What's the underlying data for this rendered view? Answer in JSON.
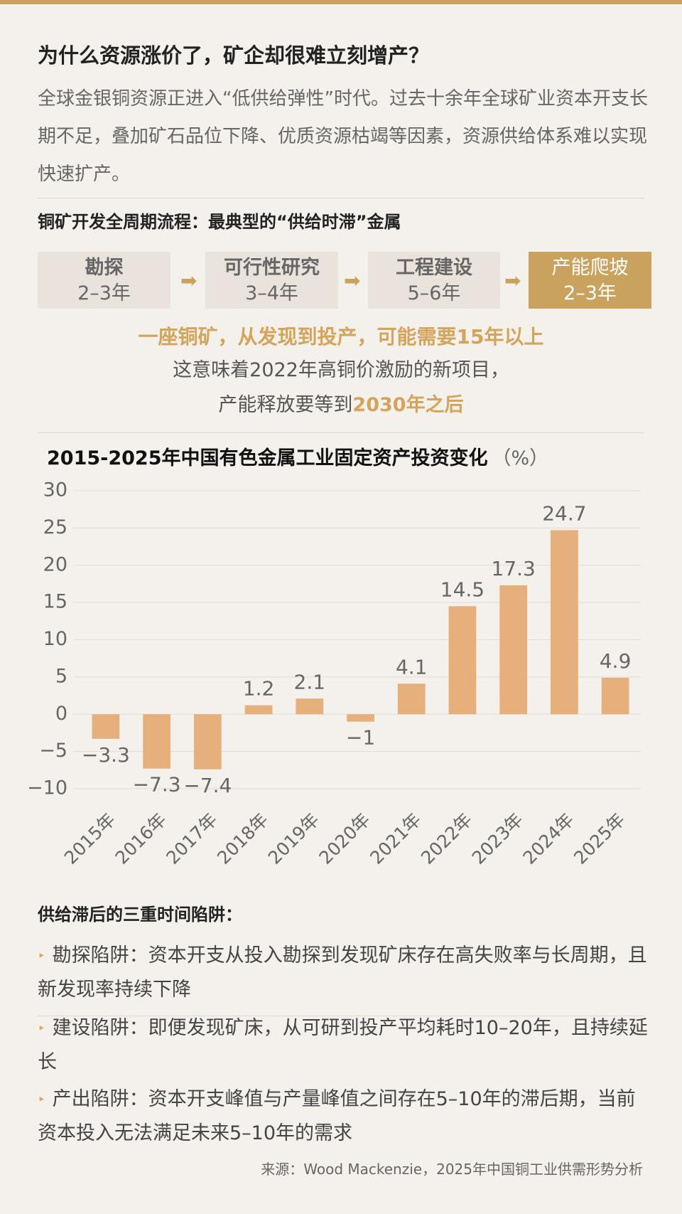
{
  "header": {
    "title": "为什么资源涨价了，矿企却很难立刻增产？",
    "intro": "全球金银铜资源正进入“低供给弹性”时代。过去十余年全球矿业资本开支长期不足，叠加矿石品位下降、优质资源枯竭等因素，资源供给体系难以实现快速扩产。"
  },
  "process": {
    "title": "铜矿开发全周期流程：最典型的“供给时滞”金属",
    "steps": [
      {
        "name": "勘探",
        "duration": "2–3年"
      },
      {
        "name": "可行性研究",
        "duration": "3–4年"
      },
      {
        "name": "工程建设",
        "duration": "5–6年"
      },
      {
        "name": "产能爬坡",
        "duration": "2–3年"
      }
    ],
    "highlight": "一座铜矿，从发现到投产，可能需要15年以上",
    "note_line1": "这意味着2022年高铜价激励的新项目，",
    "note_line2": "产能释放要等到",
    "note_line2_emphasis": "2030年之后"
  },
  "chart_data": {
    "type": "bar",
    "title": "2015-2025年中国有色金属工业固定资产投资变化",
    "unit": "（%）",
    "categories": [
      "2015年",
      "2016年",
      "2017年",
      "2018年",
      "2019年",
      "2020年",
      "2021年",
      "2022年",
      "2023年",
      "2024年",
      "2025年"
    ],
    "values": [
      -3.3,
      -7.3,
      -7.4,
      1.2,
      2.1,
      -1,
      4.1,
      14.5,
      17.3,
      24.7,
      4.9
    ],
    "value_labels": [
      "−3.3",
      "−7.3",
      "−7.4",
      "1.2",
      "2.1",
      "−1",
      "4.1",
      "14.5",
      "17.3",
      "24.7",
      "4.9"
    ],
    "color": "#e5b07c",
    "ylim": [
      -10,
      30
    ],
    "yticks": [
      {
        "value": -10,
        "label": "−10"
      },
      {
        "value": -5,
        "label": "−5"
      },
      0,
      5,
      10,
      15,
      20,
      25,
      30
    ],
    "grid": true
  },
  "traps": {
    "title": "供给滞后的三重时间陷阱：",
    "items": [
      "勘探陷阱：资本开支从投入勘探到发现矿床存在高失败率与长周期，且新发现率持续下降",
      "建设陷阱：即便发现矿床，从可研到投产平均耗时10–20年，且持续延长",
      "产出陷阱：资本开支峰值与产量峰值之间存在5–10年的滞后期，当前资本投入无法满足未来5–10年的需求"
    ]
  },
  "source": "来源：Wood Mackenzie，2025年中国铜工业供需形势分析"
}
